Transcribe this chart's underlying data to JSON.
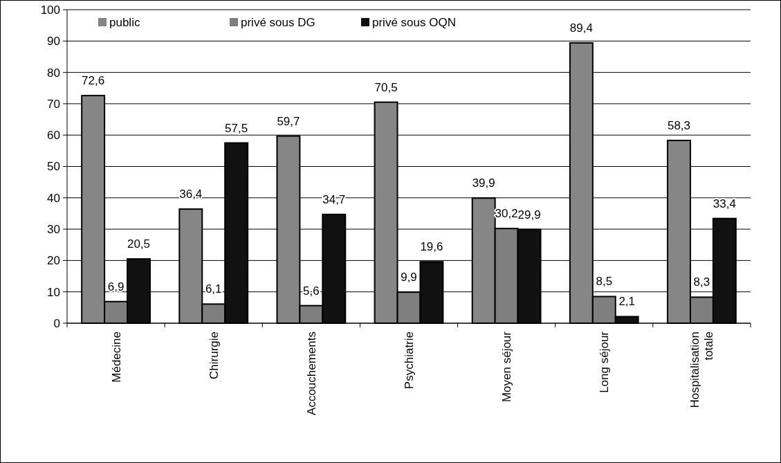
{
  "chart_data": {
    "type": "bar",
    "categories": [
      "Médecine",
      "Chirurgie",
      "Accouchements",
      "Psychiatrie",
      "Moyen séjour",
      "Long séjour",
      "Hospitalisation totale"
    ],
    "series": [
      {
        "name": "public",
        "color": "#868686",
        "values": [
          72.6,
          36.4,
          59.7,
          70.5,
          39.9,
          89.4,
          58.3
        ],
        "value_labels": [
          "72,6",
          "36,4",
          "59,7",
          "70,5",
          "39,9",
          "89,4",
          "58,3"
        ]
      },
      {
        "name": "privé sous DG",
        "color": "#7f7f7f",
        "values": [
          6.9,
          6.1,
          5.6,
          9.9,
          30.2,
          8.5,
          8.3
        ],
        "value_labels": [
          "6,9",
          "6,1",
          "5,6",
          "9,9",
          "30,2",
          "8,5",
          "8,3"
        ]
      },
      {
        "name": "privé sous OQN",
        "color": "#111111",
        "values": [
          20.5,
          57.5,
          34.7,
          19.6,
          29.9,
          2.1,
          33.4
        ],
        "value_labels": [
          "20,5",
          "57,5",
          "34,7",
          "19,6",
          "29,9",
          "2,1",
          "33,4"
        ]
      }
    ],
    "ylim": [
      0,
      100
    ],
    "yticks": [
      0,
      10,
      20,
      30,
      40,
      50,
      60,
      70,
      80,
      90,
      100
    ],
    "grid": "y",
    "legend": "top left"
  }
}
